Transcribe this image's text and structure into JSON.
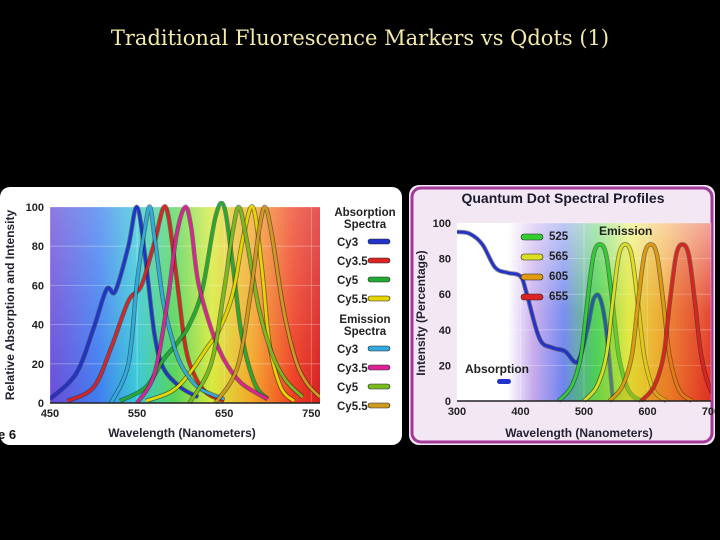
{
  "slide": {
    "title": "Traditional Fluorescence Markers vs Qdots (1)"
  },
  "chart_data": [
    {
      "type": "line",
      "title": "",
      "xlabel": "Wavelength (Nanometers)",
      "ylabel": "Relative Absorption and Intensity",
      "xlim": [
        450,
        760
      ],
      "ylim": [
        0,
        100
      ],
      "xticks": [
        "450",
        "550",
        "650",
        "750"
      ],
      "yticks": [
        "0",
        "20",
        "40",
        "60",
        "80",
        "100"
      ],
      "corner_label": "e 6",
      "legend": {
        "position": "right",
        "groups": [
          {
            "title": "Absorption Spectra",
            "entries": [
              {
                "name": "Cy3",
                "color": "#2233cc"
              },
              {
                "name": "Cy3.5",
                "color": "#dd2222"
              },
              {
                "name": "Cy5",
                "color": "#22aa33"
              },
              {
                "name": "Cy5.5",
                "color": "#e5d500"
              }
            ]
          },
          {
            "title": "Emission Spectra",
            "entries": [
              {
                "name": "Cy3",
                "color": "#33aadd"
              },
              {
                "name": "Cy3.5",
                "color": "#dd2299"
              },
              {
                "name": "Cy5",
                "color": "#77bb22"
              },
              {
                "name": "Cy5.5",
                "color": "#cc9922"
              }
            ]
          }
        ]
      },
      "series": [
        {
          "name": "Cy3 absorption",
          "color": "#2233cc",
          "x": [
            450,
            480,
            500,
            515,
            525,
            540,
            550,
            560,
            570,
            580,
            600,
            620
          ],
          "y": [
            2,
            15,
            38,
            58,
            57,
            80,
            100,
            72,
            35,
            18,
            8,
            3
          ]
        },
        {
          "name": "Cy3.5 absorption",
          "color": "#dd2222",
          "x": [
            470,
            500,
            520,
            540,
            555,
            570,
            583,
            595,
            605,
            615,
            630,
            650
          ],
          "y": [
            1,
            8,
            28,
            52,
            60,
            82,
            100,
            65,
            30,
            15,
            5,
            1
          ]
        },
        {
          "name": "Cy5 absorption",
          "color": "#22aa33",
          "x": [
            530,
            560,
            580,
            595,
            610,
            625,
            640,
            650,
            660,
            670,
            685,
            700
          ],
          "y": [
            1,
            8,
            22,
            30,
            40,
            58,
            95,
            100,
            70,
            35,
            10,
            2
          ]
        },
        {
          "name": "Cy5.5 absorption",
          "color": "#e5d500",
          "x": [
            560,
            590,
            610,
            630,
            645,
            660,
            672,
            683,
            693,
            702,
            715,
            730
          ],
          "y": [
            1,
            6,
            15,
            28,
            38,
            56,
            85,
            100,
            70,
            30,
            8,
            1
          ]
        },
        {
          "name": "Cy3 emission",
          "color": "#33aadd",
          "x": [
            520,
            540,
            550,
            560,
            565,
            570,
            580,
            590,
            600,
            620,
            650
          ],
          "y": [
            0,
            20,
            62,
            92,
            100,
            85,
            52,
            33,
            20,
            8,
            2
          ]
        },
        {
          "name": "Cy3.5 emission",
          "color": "#dd2299",
          "x": [
            550,
            570,
            585,
            595,
            605,
            612,
            620,
            635,
            650,
            670,
            700
          ],
          "y": [
            0,
            15,
            52,
            85,
            100,
            90,
            62,
            38,
            22,
            10,
            2
          ]
        },
        {
          "name": "Cy5 emission",
          "color": "#77bb22",
          "x": [
            610,
            635,
            650,
            660,
            667,
            675,
            690,
            705,
            720,
            740
          ],
          "y": [
            0,
            20,
            58,
            88,
            100,
            85,
            48,
            25,
            12,
            3
          ]
        },
        {
          "name": "Cy5.5 emission",
          "color": "#cc9922",
          "x": [
            640,
            665,
            680,
            690,
            697,
            705,
            718,
            732,
            745,
            760
          ],
          "y": [
            0,
            18,
            55,
            88,
            100,
            85,
            48,
            22,
            10,
            3
          ]
        }
      ]
    },
    {
      "type": "line",
      "title": "Quantum Dot Spectral Profiles",
      "xlabel": "Wavelength (Nanometers)",
      "ylabel": "Intensity (Percentage)",
      "xlim": [
        300,
        700
      ],
      "ylim": [
        0,
        100
      ],
      "xticks": [
        "300",
        "400",
        "500",
        "600",
        "700"
      ],
      "yticks": [
        "0",
        "20",
        "40",
        "60",
        "80",
        "100"
      ],
      "annotations": {
        "emission": "Emission",
        "absorption": "Absorption"
      },
      "legend": {
        "position": "top-right",
        "entries": [
          {
            "name": "525",
            "color": "#33cc33"
          },
          {
            "name": "565",
            "color": "#dddd22"
          },
          {
            "name": "605",
            "color": "#e09a10"
          },
          {
            "name": "655",
            "color": "#dd2222"
          }
        ]
      },
      "series": [
        {
          "name": "Absorption",
          "color": "#2233cc",
          "x": [
            300,
            320,
            340,
            360,
            380,
            400,
            410,
            430,
            450,
            470,
            490,
            505,
            515,
            525,
            535,
            545
          ],
          "y": [
            95,
            94,
            88,
            75,
            72,
            70,
            60,
            35,
            30,
            28,
            22,
            40,
            57,
            58,
            40,
            2
          ]
        },
        {
          "name": "525",
          "color": "#33cc33",
          "x": [
            460,
            480,
            495,
            505,
            515,
            525,
            535,
            545,
            555,
            570,
            590
          ],
          "y": [
            0,
            8,
            25,
            55,
            82,
            88,
            82,
            55,
            25,
            6,
            0
          ]
        },
        {
          "name": "565",
          "color": "#dddd22",
          "x": [
            500,
            520,
            535,
            545,
            555,
            565,
            575,
            585,
            595,
            610,
            630
          ],
          "y": [
            0,
            8,
            25,
            55,
            82,
            88,
            82,
            55,
            25,
            6,
            0
          ]
        },
        {
          "name": "605",
          "color": "#e09a10",
          "x": [
            540,
            560,
            575,
            585,
            595,
            605,
            615,
            625,
            635,
            650,
            670
          ],
          "y": [
            0,
            8,
            25,
            55,
            82,
            88,
            82,
            55,
            25,
            6,
            0
          ]
        },
        {
          "name": "655",
          "color": "#dd2222",
          "x": [
            590,
            610,
            625,
            635,
            645,
            655,
            665,
            675,
            685,
            700,
            720
          ],
          "y": [
            0,
            8,
            25,
            55,
            82,
            88,
            82,
            55,
            25,
            6,
            0
          ]
        }
      ]
    }
  ]
}
